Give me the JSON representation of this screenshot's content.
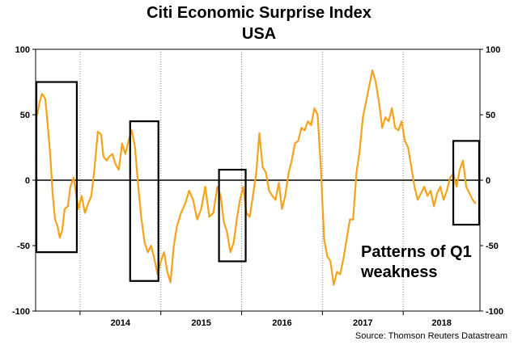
{
  "chart_data": {
    "type": "line",
    "title": "Citi Economic Surprise Index",
    "subtitle": "USA",
    "ylim": [
      -100,
      100
    ],
    "yticks_left": [
      "100",
      "50",
      "0",
      "-50",
      "-100"
    ],
    "yticks_right": [
      "100",
      "50",
      "0",
      "-50",
      "-100"
    ],
    "ytick_values": [
      100,
      50,
      0,
      -50,
      -100
    ],
    "xlim": [
      2013.45,
      2018.95
    ],
    "year_labels": [
      "2014",
      "2015",
      "2016",
      "2017",
      "2018"
    ],
    "year_boundaries": [
      2014.0,
      2015.0,
      2016.0,
      2017.0,
      2018.0,
      2019.0
    ],
    "grid": "vertical dotted at year boundaries",
    "annotation": [
      "Patterns of Q1",
      "weakness"
    ],
    "source": "Source: Thomson Reuters Datastream",
    "series_color": "#f5a31a",
    "series": [
      {
        "x": [
          2013.47,
          2013.5,
          2013.53,
          2013.57,
          2013.6,
          2013.63,
          2013.66,
          2013.69,
          2013.72,
          2013.75,
          2013.78,
          2013.81,
          2013.85,
          2013.88,
          2013.92,
          2013.95,
          2013.98,
          2014.02,
          2014.06,
          2014.1,
          2014.14,
          2014.18,
          2014.22,
          2014.26,
          2014.29,
          2014.33,
          2014.36,
          2014.4,
          2014.44,
          2014.48,
          2014.52,
          2014.56,
          2014.6,
          2014.64,
          2014.68,
          2014.72,
          2014.76,
          2014.8,
          2014.84,
          2014.88,
          2014.92,
          2014.96,
          2015.0,
          2015.04,
          2015.08,
          2015.12,
          2015.16,
          2015.2,
          2015.25,
          2015.3,
          2015.35,
          2015.4,
          2015.45,
          2015.5,
          2015.55,
          2015.6,
          2015.65,
          2015.7,
          2015.74,
          2015.78,
          2015.82,
          2015.86,
          2015.9,
          2015.94,
          2015.98,
          2016.02,
          2016.06,
          2016.1,
          2016.14,
          2016.18,
          2016.22,
          2016.26,
          2016.3,
          2016.34,
          2016.38,
          2016.42,
          2016.46,
          2016.5,
          2016.54,
          2016.58,
          2016.62,
          2016.66,
          2016.7,
          2016.74,
          2016.78,
          2016.82,
          2016.86,
          2016.9,
          2016.94,
          2016.98,
          2017.02,
          2017.06,
          2017.1,
          2017.14,
          2017.18,
          2017.22,
          2017.26,
          2017.3,
          2017.34,
          2017.38,
          2017.42,
          2017.46,
          2017.5,
          2017.54,
          2017.58,
          2017.62,
          2017.66,
          2017.7,
          2017.74,
          2017.78,
          2017.82,
          2017.86,
          2017.9,
          2017.94,
          2017.98,
          2018.02,
          2018.06,
          2018.1,
          2018.14,
          2018.18,
          2018.22,
          2018.26,
          2018.3,
          2018.34,
          2018.38,
          2018.42,
          2018.46,
          2018.5,
          2018.54,
          2018.58,
          2018.62,
          2018.66,
          2018.7,
          2018.74,
          2018.78,
          2018.82,
          2018.86,
          2018.9
        ],
        "y": [
          50,
          60,
          66,
          62,
          42,
          20,
          -10,
          -30,
          -35,
          -44,
          -38,
          -22,
          -20,
          -5,
          2,
          -10,
          -22,
          -12,
          -25,
          -18,
          -12,
          10,
          37,
          35,
          18,
          15,
          18,
          20,
          12,
          8,
          28,
          20,
          30,
          38,
          25,
          -5,
          -30,
          -48,
          -55,
          -50,
          -60,
          -72,
          -62,
          -55,
          -70,
          -78,
          -50,
          -35,
          -25,
          -18,
          -8,
          -15,
          -30,
          -22,
          -5,
          -28,
          -25,
          -5,
          -12,
          -32,
          -40,
          -55,
          -48,
          -30,
          -15,
          -5,
          -25,
          -28,
          -12,
          5,
          36,
          10,
          6,
          -8,
          -12,
          -15,
          -2,
          -22,
          -12,
          5,
          15,
          28,
          30,
          40,
          38,
          45,
          42,
          55,
          50,
          10,
          -45,
          -58,
          -62,
          -80,
          -70,
          -72,
          -60,
          -45,
          -30,
          -30,
          5,
          22,
          48,
          60,
          72,
          84,
          75,
          60,
          40,
          48,
          45,
          55,
          40,
          38,
          45,
          30,
          25,
          10,
          -5,
          -15,
          -10,
          -5,
          -12,
          -8,
          -20,
          -10,
          -5,
          -15,
          -8,
          2,
          5,
          -5,
          8,
          15,
          -5,
          -10,
          -15,
          -18
        ]
      }
    ],
    "boxes": [
      {
        "x0": 2013.46,
        "x1": 2013.96,
        "y0": -55,
        "y1": 75
      },
      {
        "x0": 2014.62,
        "x1": 2014.97,
        "y0": -77,
        "y1": 45
      },
      {
        "x0": 2015.72,
        "x1": 2016.05,
        "y0": -62,
        "y1": 8
      },
      {
        "x0": 2018.62,
        "x1": 2018.94,
        "y0": -34,
        "y1": 30
      }
    ]
  }
}
